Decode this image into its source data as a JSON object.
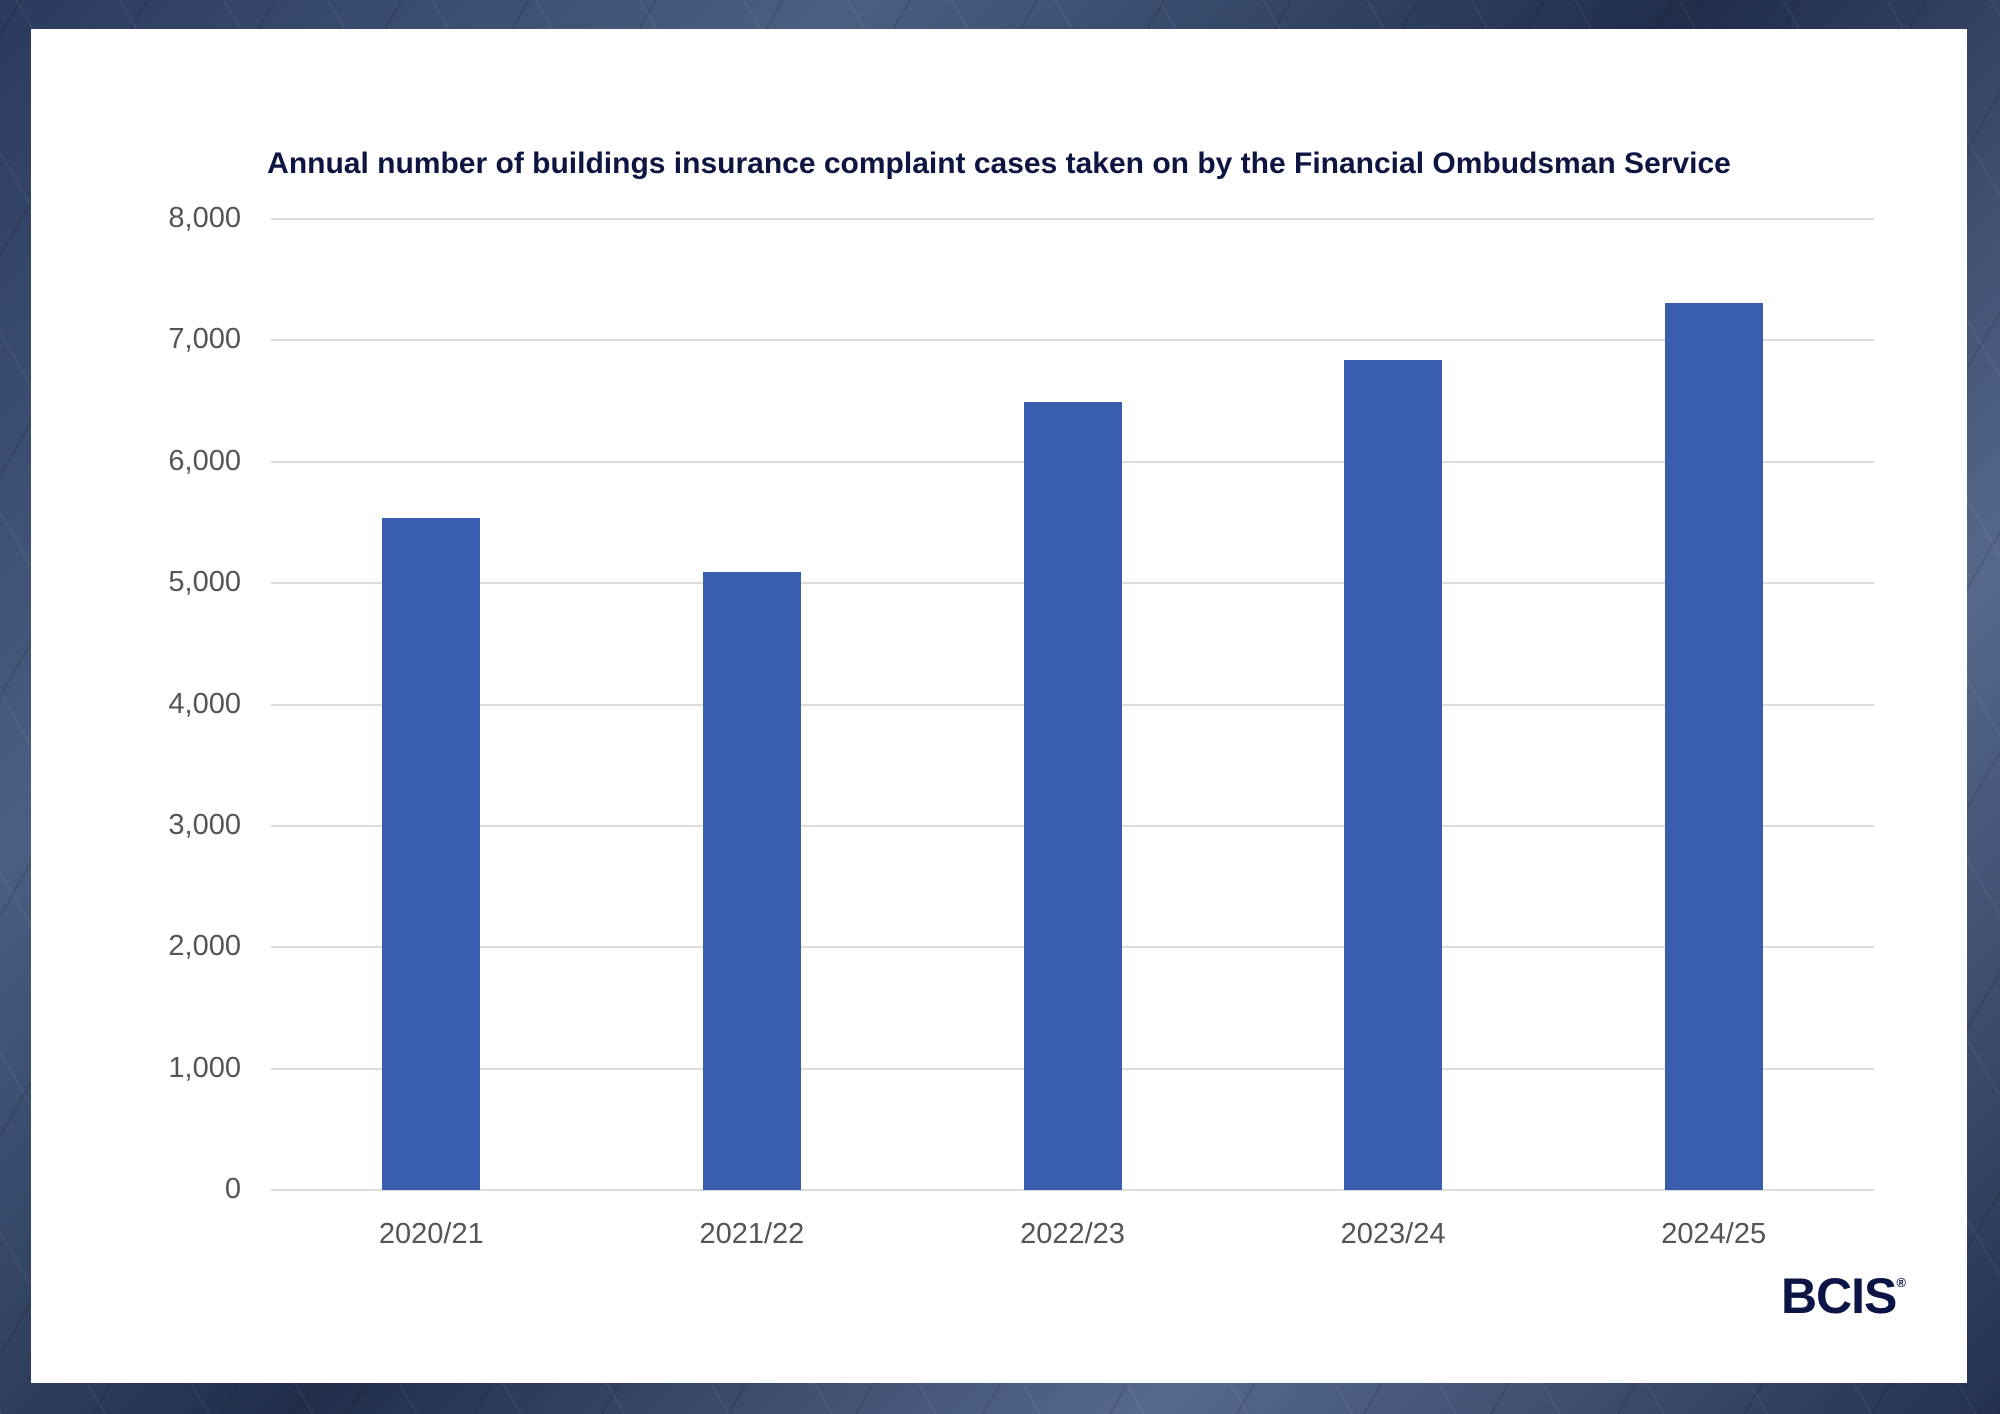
{
  "title": "Annual number of buildings insurance complaint cases taken on by the Financial Ombudsman Service",
  "logo": {
    "text": "BCIS",
    "mark": "®"
  },
  "colors": {
    "bar": "#3a5eaf",
    "title": "#0d1540",
    "grid": "#dcdcdc"
  },
  "chart_data": {
    "type": "bar",
    "title": "Annual number of buildings insurance complaint cases taken on by the Financial Ombudsman Service",
    "categories": [
      "2020/21",
      "2021/22",
      "2022/23",
      "2023/24",
      "2024/25"
    ],
    "values": [
      5540,
      5090,
      6490,
      6840,
      7310
    ],
    "xlabel": "",
    "ylabel": "",
    "ylim": [
      0,
      8000
    ],
    "yticks": [
      "0",
      "1,000",
      "2,000",
      "3,000",
      "4,000",
      "5,000",
      "6,000",
      "7,000",
      "8,000"
    ],
    "grid": true,
    "legend": "none"
  }
}
